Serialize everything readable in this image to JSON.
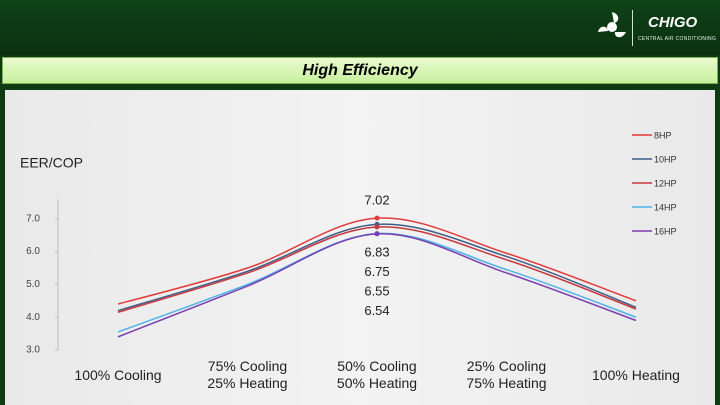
{
  "header": {
    "brand": "CHIGO",
    "tagline": "CENTRAL AIR CONDITIONING"
  },
  "chart_data": {
    "type": "line",
    "title": "High Efficiency",
    "y_label": "EER/COP",
    "categories": [
      "100% Cooling",
      "75% Cooling\n25% Heating",
      "50% Cooling\n50% Heating",
      "25% Cooling\n75% Heating",
      "100% Heating"
    ],
    "series": [
      {
        "name": "8HP",
        "color": "#e23b3b",
        "values": [
          4.4,
          5.5,
          7.02,
          5.95,
          4.5
        ]
      },
      {
        "name": "10HP",
        "color": "#3d5f8a",
        "values": [
          4.2,
          5.4,
          6.83,
          5.85,
          4.3
        ]
      },
      {
        "name": "12HP",
        "color": "#c8383c",
        "values": [
          4.15,
          5.35,
          6.75,
          5.75,
          4.25
        ]
      },
      {
        "name": "14HP",
        "color": "#4fb3e8",
        "values": [
          3.55,
          5.0,
          6.55,
          5.45,
          4.0
        ]
      },
      {
        "name": "16HP",
        "color": "#7a3fb0",
        "values": [
          3.4,
          4.95,
          6.54,
          5.35,
          3.9
        ]
      }
    ],
    "ylim": [
      3,
      7.6
    ],
    "yticks": [
      {
        "value": 3,
        "label": "3.0"
      },
      {
        "value": 4,
        "label": "4.0"
      },
      {
        "value": 5,
        "label": "5.0"
      },
      {
        "value": 6,
        "label": "6.0"
      },
      {
        "value": 7,
        "label": "7.0"
      }
    ],
    "legend": "top-right"
  }
}
